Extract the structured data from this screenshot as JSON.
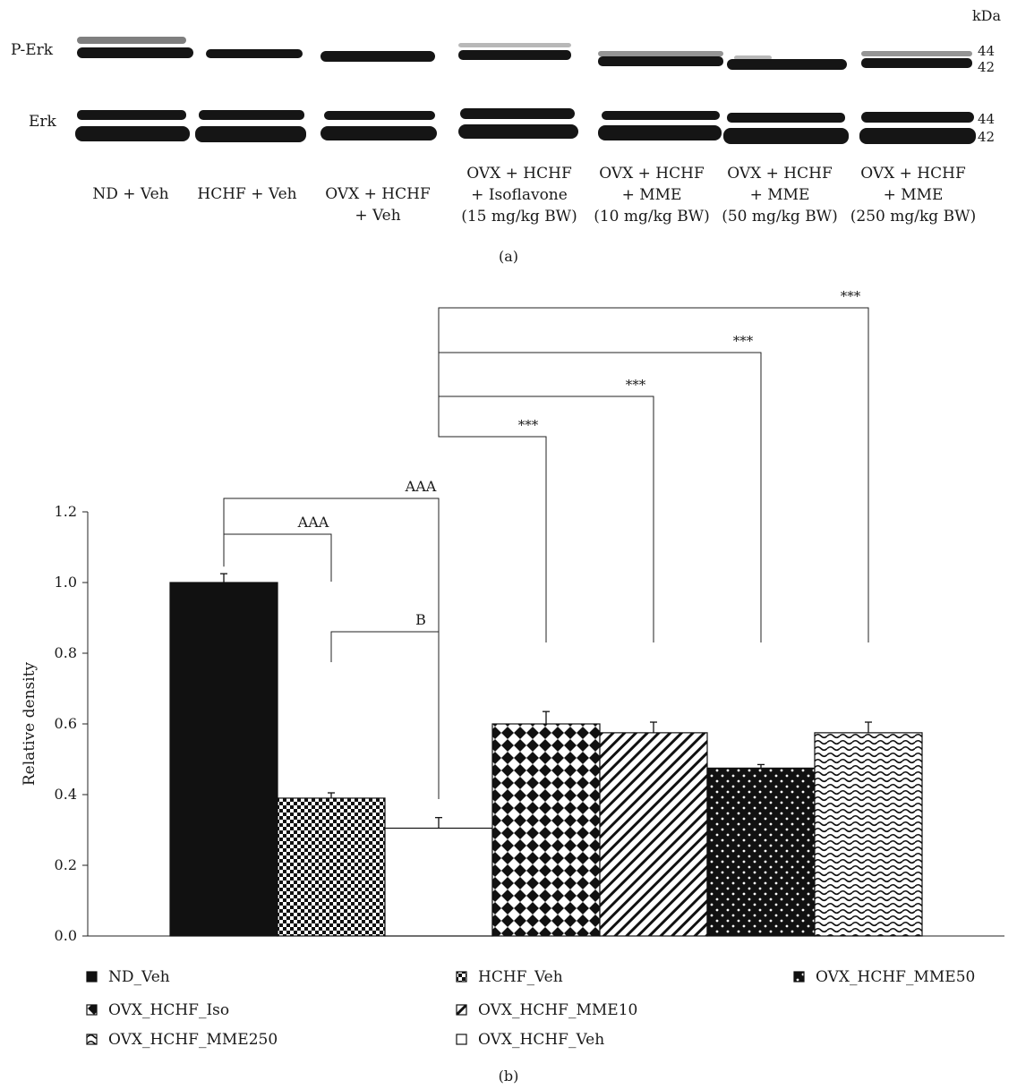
{
  "blot": {
    "kda_label": "kDa",
    "rows": [
      {
        "label": "P-Erk",
        "markers": [
          "44",
          "42"
        ]
      },
      {
        "label": "Erk",
        "markers": [
          "44",
          "42"
        ]
      }
    ],
    "lanes": [
      [
        "ND + Veh"
      ],
      [
        "HCHF + Veh"
      ],
      [
        "OVX + HCHF",
        "+ Veh"
      ],
      [
        "OVX + HCHF",
        "+ Isoflavone",
        "(15 mg/kg BW)"
      ],
      [
        "OVX + HCHF",
        "+ MME",
        "(10 mg/kg BW)"
      ],
      [
        "OVX + HCHF",
        "+ MME",
        "(50 mg/kg BW)"
      ],
      [
        "OVX + HCHF",
        "+ MME",
        "(250 mg/kg BW)"
      ]
    ],
    "panel_label": "(a)"
  },
  "chart_data": {
    "type": "bar",
    "ylabel": "Relative density",
    "ylim": [
      0,
      1.2
    ],
    "yticks": [
      "0.0",
      "0.2",
      "0.4",
      "0.6",
      "0.8",
      "1.0",
      "1.2"
    ],
    "categories": [
      "ND_Veh",
      "HCHF_Veh",
      "OVX_HCHF_Veh",
      "OVX_HCHF_Iso",
      "OVX_HCHF_MME10",
      "OVX_HCHF_MME50",
      "OVX_HCHF_MME250"
    ],
    "values": [
      1.0,
      0.39,
      0.305,
      0.6,
      0.575,
      0.475,
      0.575
    ],
    "errors": [
      0.025,
      0.015,
      0.03,
      0.035,
      0.03,
      0.01,
      0.03
    ],
    "significance": [
      {
        "label": "AAA",
        "from": 0,
        "to": 1
      },
      {
        "label": "AAA",
        "from": 0,
        "to": 2
      },
      {
        "label": "B",
        "from": 1,
        "to": 2
      },
      {
        "label": "***",
        "from": 2,
        "to": 3
      },
      {
        "label": "***",
        "from": 2,
        "to": 4
      },
      {
        "label": "***",
        "from": 2,
        "to": 5
      },
      {
        "label": "***",
        "from": 2,
        "to": 6
      }
    ],
    "legend": [
      "ND_Veh",
      "HCHF_Veh",
      "OVX_HCHF_MME50",
      "OVX_HCHF_Iso",
      "OVX_HCHF_MME10",
      "OVX_HCHF_MME250",
      "OVX_HCHF_Veh"
    ],
    "legend_placement": "bottom",
    "panel_label": "(b)"
  }
}
